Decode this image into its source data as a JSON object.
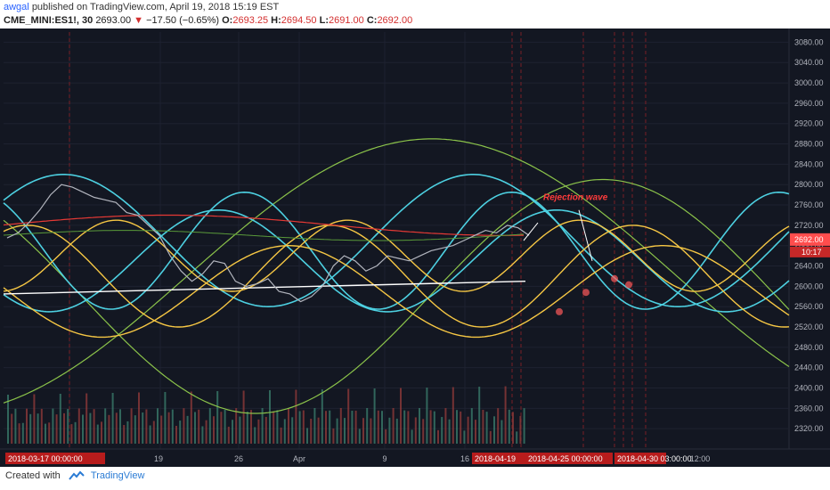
{
  "header": {
    "author": "awgal",
    "published_text": "published on TradingView.com, April 19, 2018 15:19 EST",
    "symbol": "CME_MINI:ES1!, 30",
    "last": "2693.00",
    "change": "−17.50 (−0.65%)",
    "open_label": "O:",
    "open": "2693.25",
    "high_label": "H:",
    "high": "2694.50",
    "low_label": "L:",
    "low": "2691.00",
    "close_label": "C:",
    "close": "2692.00"
  },
  "footer": {
    "created_with": "Created with",
    "brand": "TradingView"
  },
  "colors": {
    "background": "#131722",
    "cyan": "#4dd0e1",
    "yellow": "#f6c744",
    "green": "#8bc34a",
    "price": "#b2b5be",
    "red_ma": "#e53935",
    "white_ma": "#ffffff",
    "annotation": "#ff3b3b",
    "last_price_bg": "#ff4d4d"
  },
  "chart_data": {
    "type": "line",
    "title": "",
    "ylim": [
      2280,
      3100
    ],
    "y_ticks": [
      "3080.00",
      "3040.00",
      "3000.00",
      "2960.00",
      "2920.00",
      "2880.00",
      "2840.00",
      "2800.00",
      "2760.00",
      "2720.00",
      "2680.00",
      "2640.00",
      "2600.00",
      "2560.00",
      "2520.00",
      "2480.00",
      "2440.00",
      "2400.00",
      "2360.00",
      "2320.00"
    ],
    "x_ticks": [
      "19",
      "26",
      "Apr",
      "9",
      "16",
      "12:00"
    ],
    "x_time_labels": [
      "2018-03-17 00:00:00",
      "2018-04-19",
      "2018-04-25 00:00:00",
      "2018-04-30 03:00:00"
    ],
    "last_price_label": "2692.00",
    "countdown_label": "10:17",
    "annotation": "Rejection wave",
    "price_series": [
      2695,
      2705,
      2725,
      2750,
      2780,
      2800,
      2795,
      2785,
      2775,
      2770,
      2765,
      2745,
      2740,
      2720,
      2700,
      2660,
      2630,
      2610,
      2625,
      2650,
      2645,
      2610,
      2600,
      2605,
      2615,
      2590,
      2585,
      2570,
      2580,
      2600,
      2640,
      2660,
      2650,
      2630,
      2640,
      2660,
      2655,
      2650,
      2660,
      2670,
      2675,
      2680,
      2690,
      2700,
      2710,
      2705,
      2720,
      2715,
      2700
    ],
    "series": [
      {
        "color": "#4dd0e1",
        "phase": "cyan waves",
        "amplitude": 140
      },
      {
        "color": "#f6c744",
        "phase": "yellow waves",
        "amplitude": 110
      },
      {
        "color": "#8bc34a",
        "phase": "green waves",
        "amplitude": 260
      }
    ],
    "red_ma_level": 2720,
    "white_ma_level": 2590
  }
}
